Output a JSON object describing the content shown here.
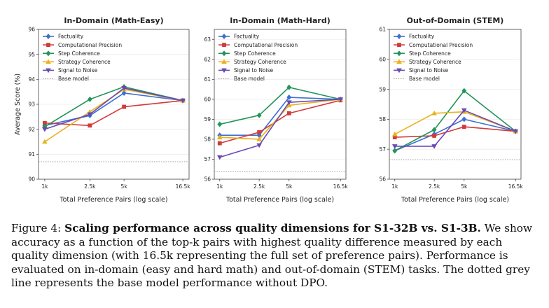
{
  "chart_data": [
    {
      "type": "line",
      "title": "In-Domain (Math-Easy)",
      "xlabel": "Total Preference Pairs (log scale)",
      "ylabel": "Average Score (%)",
      "x": [
        1000,
        2500,
        5000,
        16500
      ],
      "xtick_labels": [
        "1k",
        "2.5k",
        "5k",
        "16.5k"
      ],
      "xscale": "log",
      "ylim": [
        90,
        96
      ],
      "yticks": [
        90,
        91,
        92,
        93,
        94,
        95,
        96
      ],
      "legend_position": "upper-left",
      "series": [
        {
          "name": "Factuality",
          "values": [
            92.15,
            92.55,
            93.45,
            93.15
          ]
        },
        {
          "name": "Computational Precision",
          "values": [
            92.25,
            92.15,
            92.9,
            93.15
          ]
        },
        {
          "name": "Step Coherence",
          "values": [
            92.1,
            93.2,
            93.7,
            93.15
          ]
        },
        {
          "name": "Strategy Coherence",
          "values": [
            91.5,
            92.7,
            93.6,
            93.15
          ]
        },
        {
          "name": "Signal to Noise",
          "values": [
            92.0,
            92.6,
            93.65,
            93.15
          ]
        }
      ],
      "baseline": {
        "name": "Base model",
        "value": 90.7
      }
    },
    {
      "type": "line",
      "title": "In-Domain (Math-Hard)",
      "xlabel": "Total Preference Pairs (log scale)",
      "ylabel": "",
      "x": [
        1000,
        2500,
        5000,
        16500
      ],
      "xtick_labels": [
        "1k",
        "2.5k",
        "5k",
        "16.5k"
      ],
      "xscale": "log",
      "ylim": [
        56,
        63.5
      ],
      "yticks": [
        56,
        57,
        58,
        59,
        60,
        61,
        62,
        63
      ],
      "legend_position": "upper-left",
      "series": [
        {
          "name": "Factuality",
          "values": [
            58.2,
            58.2,
            60.1,
            60.0
          ]
        },
        {
          "name": "Computational Precision",
          "values": [
            57.8,
            58.35,
            59.3,
            59.95
          ]
        },
        {
          "name": "Step Coherence",
          "values": [
            58.75,
            59.2,
            60.6,
            60.0
          ]
        },
        {
          "name": "Strategy Coherence",
          "values": [
            58.1,
            58.0,
            59.7,
            60.0
          ]
        },
        {
          "name": "Signal to Noise",
          "values": [
            57.1,
            57.7,
            59.85,
            60.0
          ]
        }
      ],
      "baseline": {
        "name": "Base model",
        "value": 56.4
      }
    },
    {
      "type": "line",
      "title": "Out-of-Domain (STEM)",
      "xlabel": "Total Preference Pairs (log scale)",
      "ylabel": "",
      "x": [
        1000,
        2500,
        5000,
        16500
      ],
      "xtick_labels": [
        "1k",
        "2.5k",
        "5k",
        "16.5k"
      ],
      "xscale": "log",
      "ylim": [
        56,
        61
      ],
      "yticks": [
        56,
        57,
        58,
        59,
        60,
        61
      ],
      "legend_position": "upper-left",
      "series": [
        {
          "name": "Factuality",
          "values": [
            56.95,
            57.5,
            58.0,
            57.6
          ]
        },
        {
          "name": "Computational Precision",
          "values": [
            57.4,
            57.45,
            57.75,
            57.6
          ]
        },
        {
          "name": "Step Coherence",
          "values": [
            56.95,
            57.65,
            58.95,
            57.6
          ]
        },
        {
          "name": "Strategy Coherence",
          "values": [
            57.5,
            58.2,
            58.25,
            57.6
          ]
        },
        {
          "name": "Signal to Noise",
          "values": [
            57.1,
            57.1,
            58.3,
            57.6
          ]
        }
      ],
      "baseline": {
        "name": "Base model",
        "value": 56.65
      }
    }
  ],
  "series_colors": [
    "#3b6fd4",
    "#d13b3b",
    "#21955a",
    "#e8b21a",
    "#6a48b4"
  ],
  "series_markers": [
    "diamond",
    "square",
    "diamond",
    "triangle-up",
    "triangle-down"
  ],
  "baseline_color": "#999999",
  "caption": {
    "label": "Figure 4:",
    "bold": "Scaling performance across quality dimensions for S1-32B vs. S1-3B.",
    "text": "We show accuracy as a function of the top-k pairs with highest quality difference measured by each quality dimension (with 16.5k representing the full set of preference pairs). Performance is evaluated on in-domain (easy and hard math) and out-of-domain (STEM) tasks. The dotted grey line represents the base model performance without DPO."
  }
}
